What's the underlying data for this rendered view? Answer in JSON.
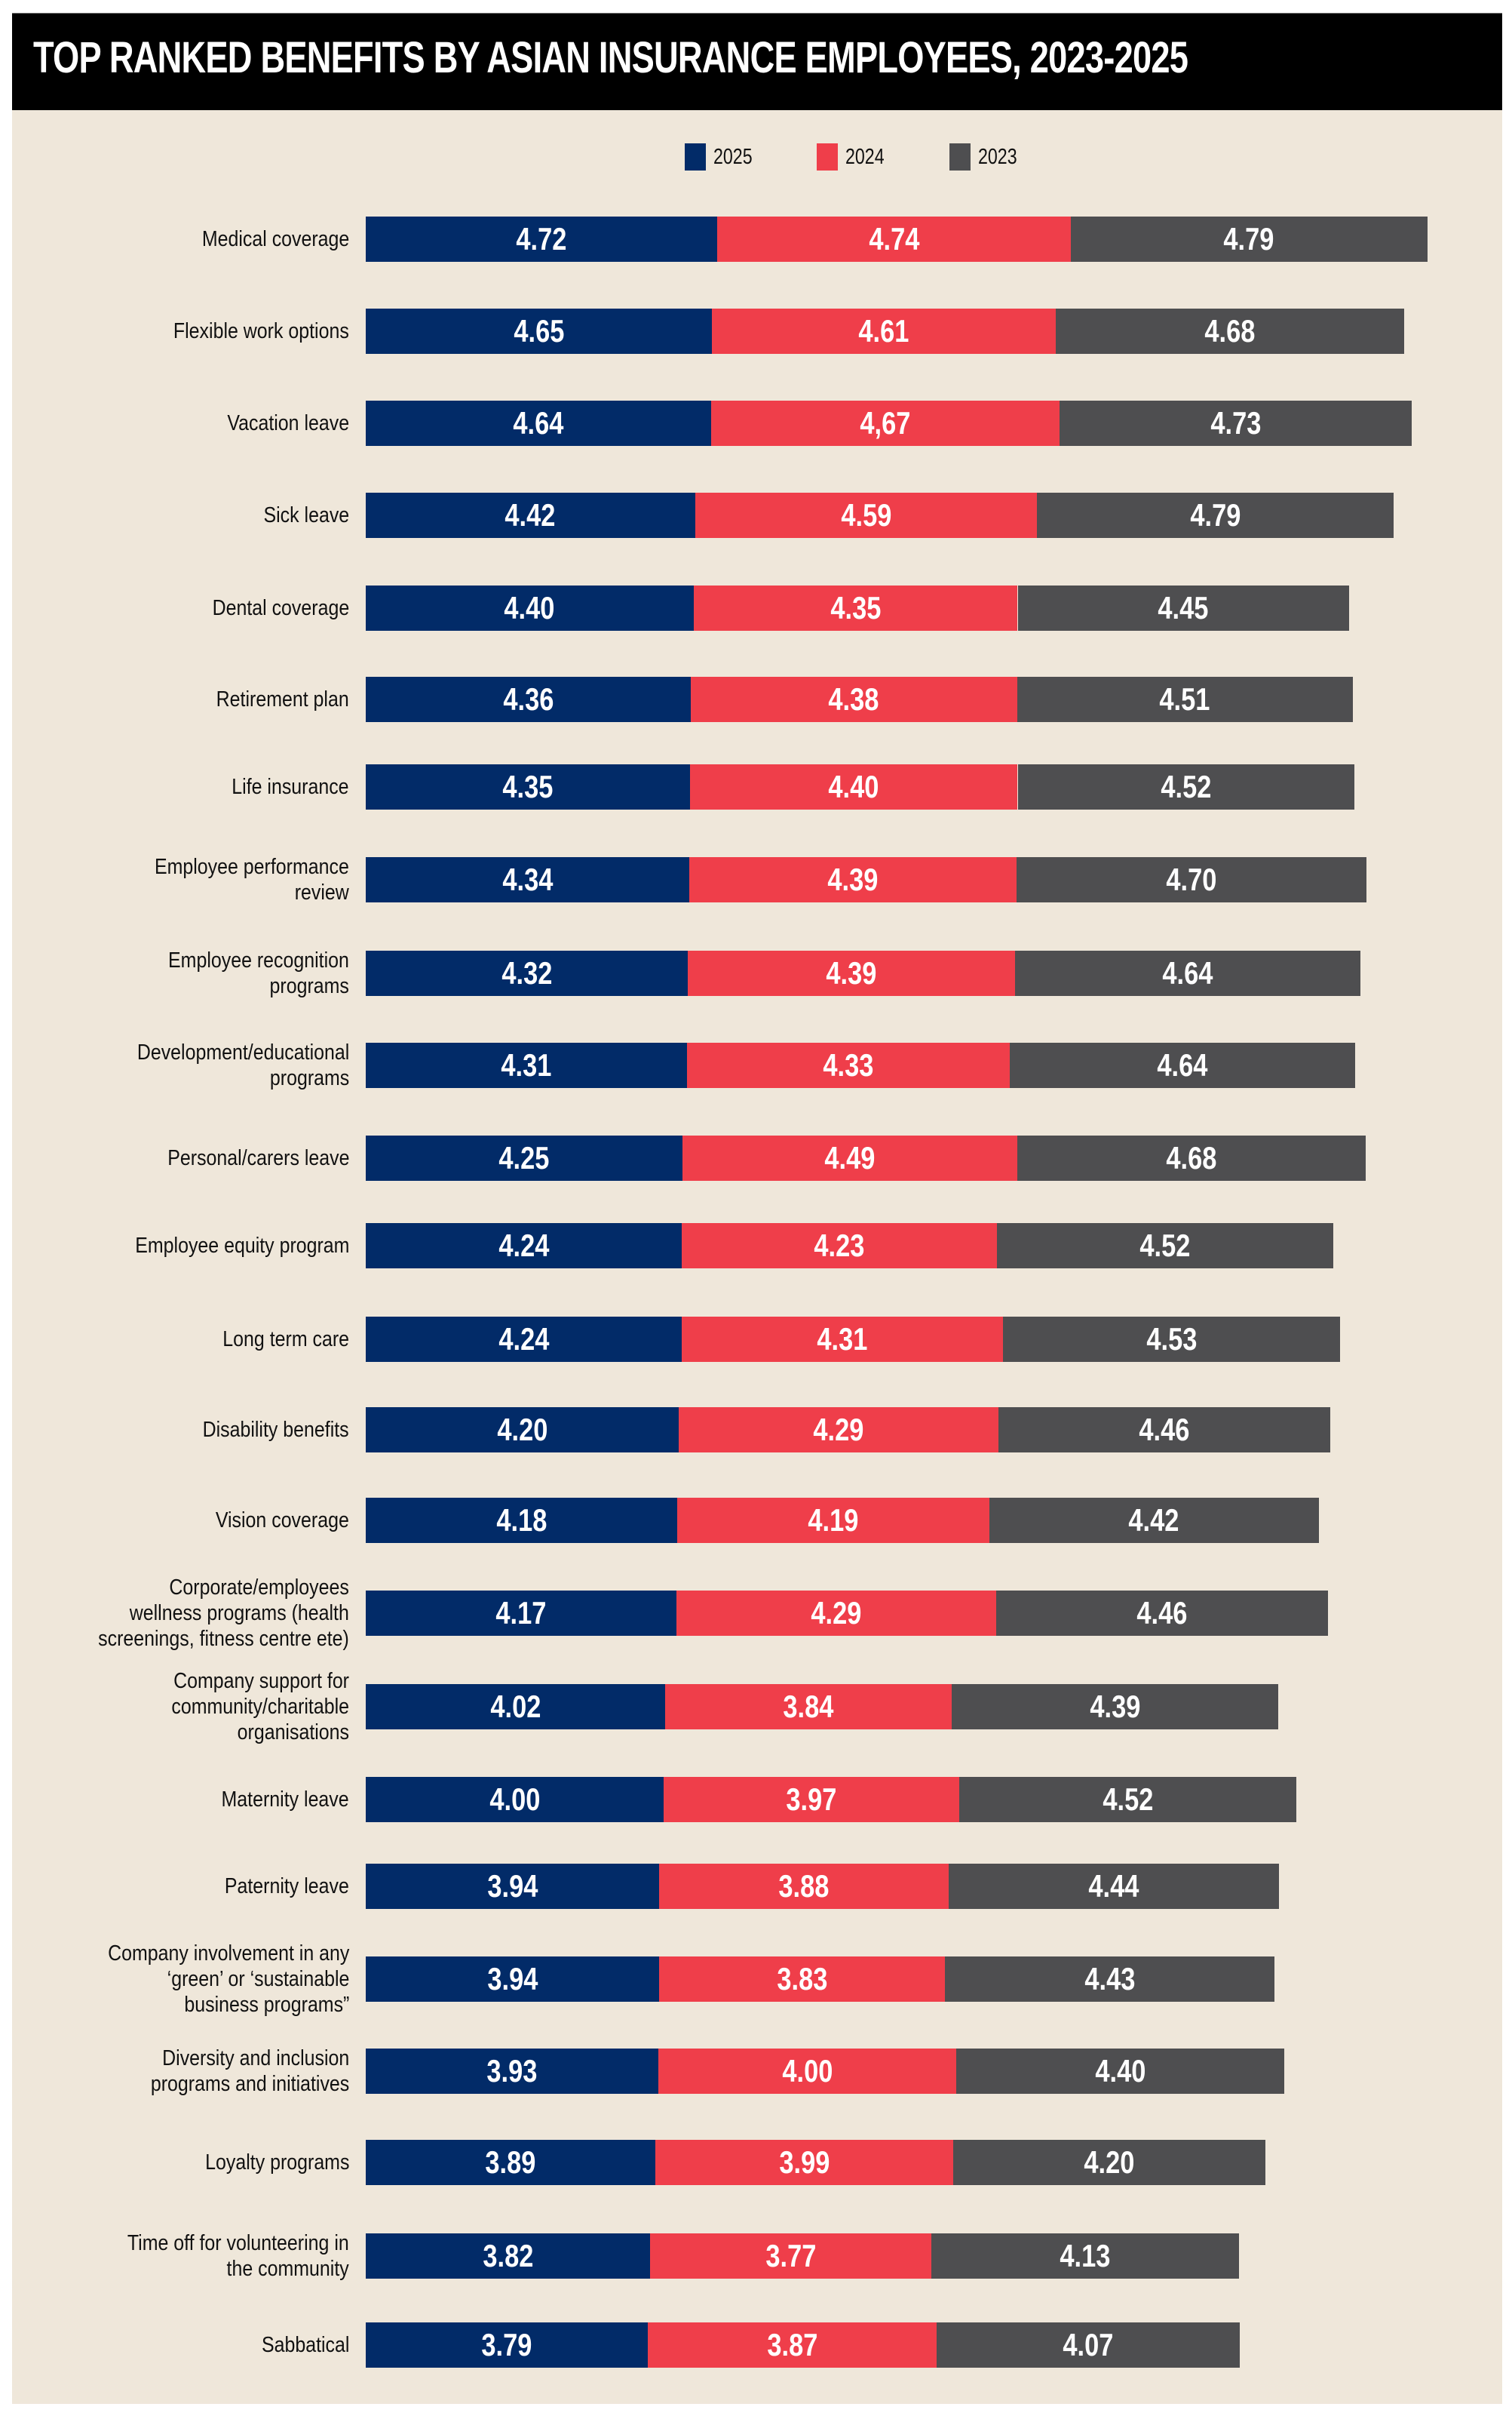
{
  "colors": {
    "title_bg": "#000000",
    "panel_bg": "#efe7da",
    "s2025": "#022b68",
    "s2024": "#ef3e4a",
    "s2023": "#4e4e50",
    "value_text": "#ffffff"
  },
  "chart_data": {
    "type": "bar",
    "orientation": "horizontal",
    "stacked": true,
    "title": "TOP RANKED BENEFITS BY ASIAN INSURANCE EMPLOYEES, 2023-2025",
    "xlabel": "",
    "ylabel": "",
    "grid": false,
    "legend_position": "top-center",
    "legend": [
      "2025",
      "2024",
      "2023"
    ],
    "categories": [
      "Medical coverage",
      "Flexible work options",
      "Vacation leave",
      "Sick leave",
      "Dental coverage",
      "Retirement plan",
      "Life insurance",
      "Employee performance review",
      "Employee recognition programs",
      "Development/educational programs",
      "Personal/carers leave",
      "Employee equity program",
      "Long term care",
      "Disability benefits",
      "Vision coverage",
      "Corporate/employees wellness programs (health screenings, fitness centre ete)",
      "Company support for community/charitable organisations",
      "Maternity leave",
      "Paternity leave",
      "Company involvement in any ‘green’ or ‘sustainable business programs”",
      "Diversity and inclusion programs and initiatives",
      "Loyalty programs",
      "Time off for volunteering in the community",
      "Sabbatical"
    ],
    "category_lines": [
      [
        "Medical coverage"
      ],
      [
        "Flexible work options"
      ],
      [
        "Vacation leave"
      ],
      [
        "Sick leave"
      ],
      [
        "Dental coverage"
      ],
      [
        "Retirement plan"
      ],
      [
        "Life insurance"
      ],
      [
        "Employee performance",
        "review"
      ],
      [
        "Employee recognition",
        "programs"
      ],
      [
        "Development/educational",
        "programs"
      ],
      [
        "Personal/carers leave"
      ],
      [
        "Employee equity program"
      ],
      [
        "Long term care"
      ],
      [
        "Disability benefits"
      ],
      [
        "Vision coverage"
      ],
      [
        "Corporate/employees",
        "wellness programs (health",
        "screenings, fitness centre ete)"
      ],
      [
        "Company support for",
        "community/charitable",
        "organisations"
      ],
      [
        "Maternity leave"
      ],
      [
        "Paternity leave"
      ],
      [
        "Company involvement in any",
        "‘green’ or ‘sustainable",
        "business programs”"
      ],
      [
        "Diversity and inclusion",
        "programs and initiatives"
      ],
      [
        "Loyalty programs"
      ],
      [
        "Time off for volunteering in",
        "the community"
      ],
      [
        "Sabbatical"
      ]
    ],
    "series": [
      {
        "name": "2025",
        "values": [
          4.72,
          4.65,
          4.64,
          4.42,
          4.4,
          4.36,
          4.35,
          4.34,
          4.32,
          4.31,
          4.25,
          4.24,
          4.24,
          4.2,
          4.18,
          4.17,
          4.02,
          4.0,
          3.94,
          3.94,
          3.93,
          3.89,
          3.82,
          3.79
        ],
        "labels": [
          "4.72",
          "4.65",
          "4.64",
          "4.42",
          "4.40",
          "4.36",
          "4.35",
          "4.34",
          "4.32",
          "4.31",
          "4.25",
          "4.24",
          "4.24",
          "4.20",
          "4.18",
          "4.17",
          "4.02",
          "4.00",
          "3.94",
          "3.94",
          "3.93",
          "3.89",
          "3.82",
          "3.79"
        ]
      },
      {
        "name": "2024",
        "values": [
          4.74,
          4.61,
          4.67,
          4.59,
          4.35,
          4.38,
          4.4,
          4.39,
          4.39,
          4.33,
          4.49,
          4.23,
          4.31,
          4.29,
          4.19,
          4.29,
          3.84,
          3.97,
          3.88,
          3.83,
          4.0,
          3.99,
          3.77,
          3.87
        ],
        "labels": [
          "4.74",
          "4.61",
          "4,67",
          "4.59",
          "4.35",
          "4.38",
          "4.40",
          "4.39",
          "4.39",
          "4.33",
          "4.49",
          "4.23",
          "4.31",
          "4.29",
          "4.19",
          "4.29",
          "3.84",
          "3.97",
          "3.88",
          "3.83",
          "4.00",
          "3.99",
          "3.77",
          "3.87"
        ]
      },
      {
        "name": "2023",
        "values": [
          4.79,
          4.68,
          4.73,
          4.79,
          4.45,
          4.51,
          4.52,
          4.7,
          4.64,
          4.64,
          4.68,
          4.52,
          4.53,
          4.46,
          4.42,
          4.46,
          4.39,
          4.52,
          4.44,
          4.43,
          4.4,
          4.2,
          4.13,
          4.07
        ],
        "labels": [
          "4.79",
          "4.68",
          "4.73",
          "4.79",
          "4.45",
          "4.51",
          "4.52",
          "4.70",
          "4.64",
          "4.64",
          "4.68",
          "4.52",
          "4.53",
          "4.46",
          "4.42",
          "4.46",
          "4.39",
          "4.52",
          "4.44",
          "4.43",
          "4.40",
          "4.20",
          "4.13",
          "4.07"
        ]
      }
    ]
  }
}
